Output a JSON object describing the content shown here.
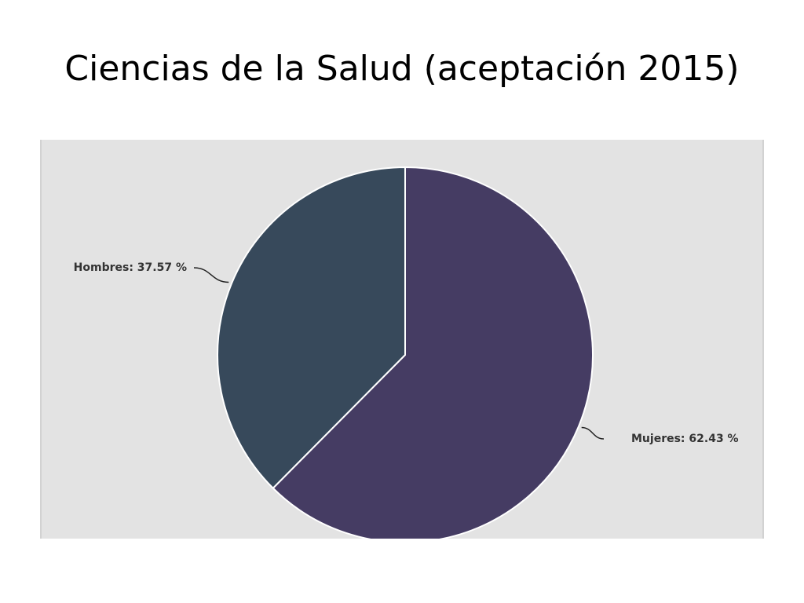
{
  "slide": {
    "title": "Ciencias de la Salud (aceptación 2015)"
  },
  "colors": {
    "panel_background": "#e3e3e3",
    "panel_border": "#d2d2d2",
    "label_text": "#333333",
    "leader_line": "#222222",
    "slice_separator": "#ffffff"
  },
  "chart_data": {
    "type": "pie",
    "title": "",
    "start_angle_deg": 0,
    "direction": "clockwise",
    "slices": [
      {
        "label": "Mujeres",
        "value": 62.43,
        "display": "Mujeres: 62.43 %",
        "color": "#453c63"
      },
      {
        "label": "Hombres",
        "value": 37.57,
        "display": "Hombres: 37.57 %",
        "color": "#37495b"
      }
    ]
  }
}
